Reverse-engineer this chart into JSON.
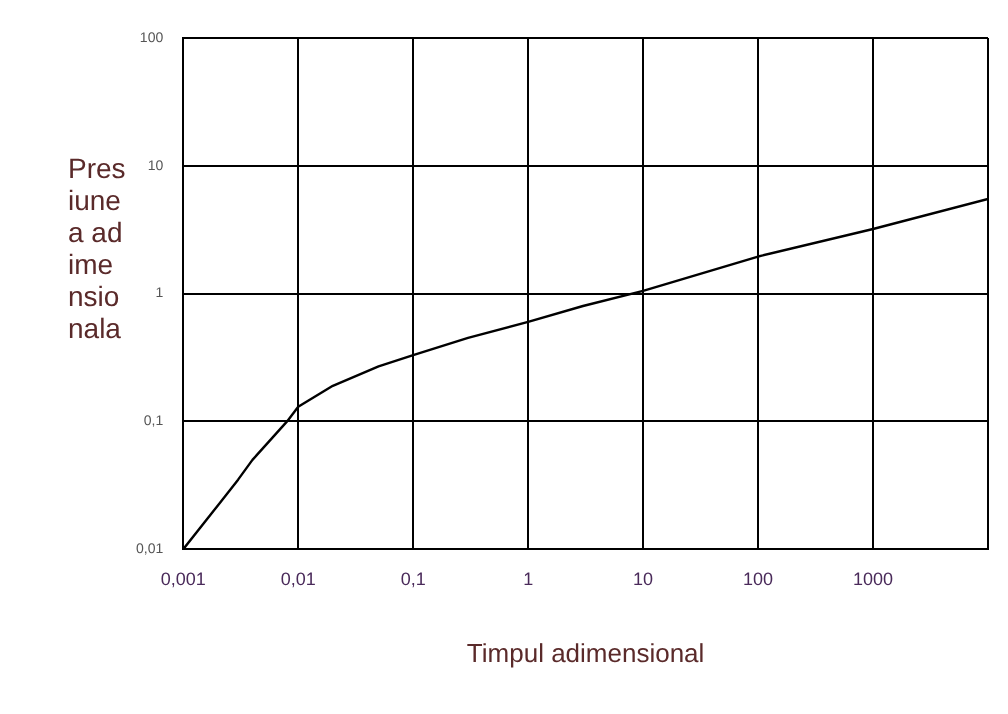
{
  "chart_data": {
    "type": "line",
    "xlabel": "Timpul adimensional",
    "ylabel": "Presiunea adimensionala",
    "log": "xy",
    "grid": true,
    "legend": false,
    "marker": "none",
    "line_style": "solid",
    "xlim": [
      0.001,
      10000
    ],
    "xticks": [
      {
        "value": 0.001,
        "label": "0,001"
      },
      {
        "value": 0.01,
        "label": "0,01"
      },
      {
        "value": 0.1,
        "label": "0,1"
      },
      1,
      10,
      100,
      1000,
      {
        "value": 10000,
        "label": null
      }
    ],
    "ylim": [
      0.01,
      100
    ],
    "yticks": [
      {
        "value": 0.01,
        "label": "0,01"
      },
      {
        "value": 0.1,
        "label": "0,1"
      },
      1,
      10,
      100
    ],
    "series": [
      {
        "color": "#000000",
        "x": [
          0.001,
          0.002,
          0.003,
          0.004,
          0.006,
          0.008,
          0.01,
          0.02,
          0.05,
          0.1,
          0.3,
          1,
          3,
          10,
          100,
          1000,
          10000
        ],
        "values": [
          0.01,
          0.022,
          0.035,
          0.05,
          0.075,
          0.1,
          0.13,
          0.19,
          0.27,
          0.33,
          0.45,
          0.6,
          0.8,
          1.05,
          1.95,
          3.2,
          5.5
        ]
      }
    ]
  }
}
